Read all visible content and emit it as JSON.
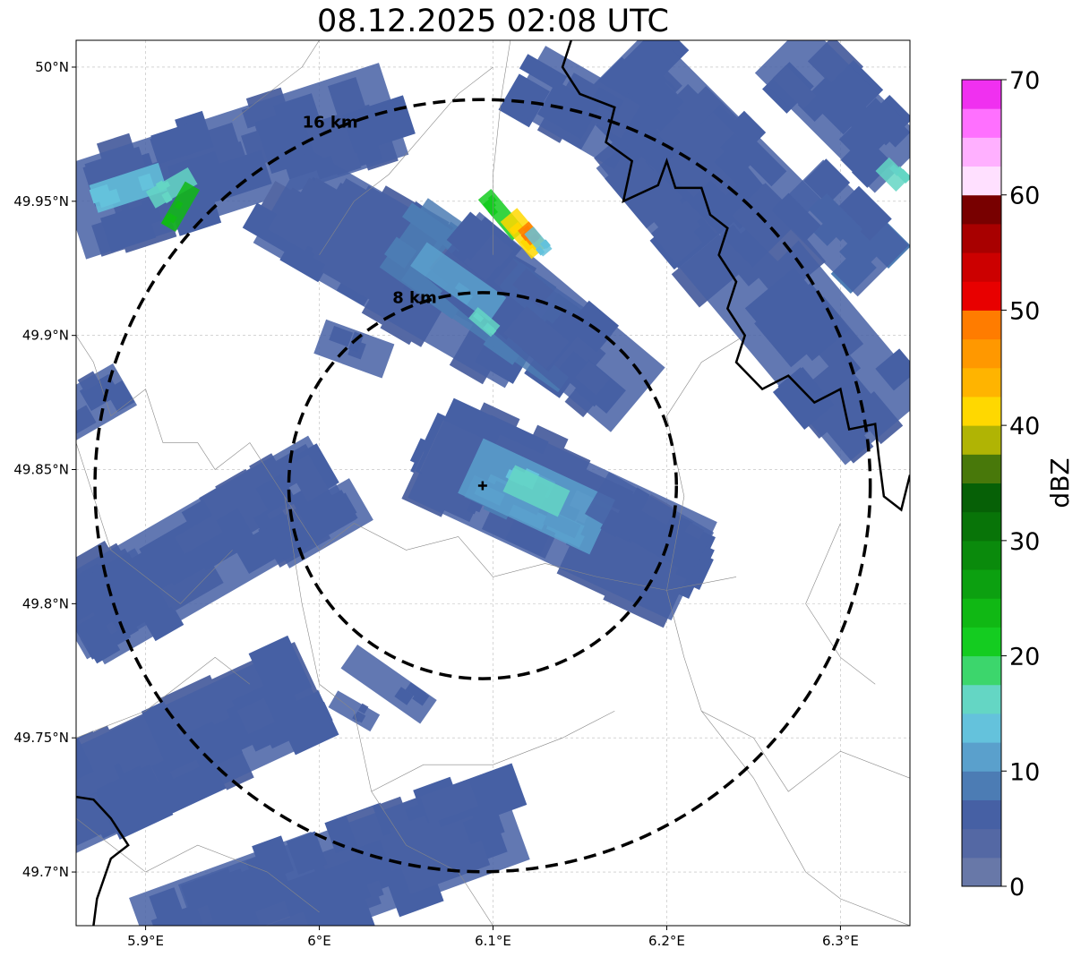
{
  "title": "08.12.2025 02:08 UTC",
  "map": {
    "extent": {
      "lon": [
        5.86,
        6.34
      ],
      "lat": [
        49.68,
        50.01
      ]
    },
    "lon_ticks": [
      {
        "value": 5.9,
        "label": "5.9°E"
      },
      {
        "value": 6.0,
        "label": "6°E"
      },
      {
        "value": 6.1,
        "label": "6.1°E"
      },
      {
        "value": 6.2,
        "label": "6.2°E"
      },
      {
        "value": 6.3,
        "label": "6.3°E"
      }
    ],
    "lat_ticks": [
      {
        "value": 50.0,
        "label": "50°N"
      },
      {
        "value": 49.95,
        "label": "49.95°N"
      },
      {
        "value": 49.9,
        "label": "49.9°N"
      },
      {
        "value": 49.85,
        "label": "49.85°N"
      },
      {
        "value": 49.8,
        "label": "49.8°N"
      },
      {
        "value": 49.75,
        "label": "49.75°N"
      },
      {
        "value": 49.7,
        "label": "49.7°N"
      }
    ],
    "radar_site": {
      "lon": 6.094,
      "lat": 49.844
    },
    "range_rings": [
      {
        "label": "8 km",
        "radius_km": 8
      },
      {
        "label": "16 km",
        "radius_km": 16
      }
    ],
    "gridlines": true
  },
  "colorbar": {
    "label": "dBZ",
    "min": 0,
    "max": 70,
    "ticks": [
      {
        "value": 0,
        "label": "0"
      },
      {
        "value": 10,
        "label": "10"
      },
      {
        "value": 20,
        "label": "20"
      },
      {
        "value": 30,
        "label": "30"
      },
      {
        "value": 40,
        "label": "40"
      },
      {
        "value": 50,
        "label": "50"
      },
      {
        "value": 60,
        "label": "60"
      },
      {
        "value": 70,
        "label": "70"
      }
    ],
    "colors": [
      "#6878a8",
      "#5468a4",
      "#4660a4",
      "#4c7cb4",
      "#5aa0cc",
      "#64c2dc",
      "#64d6c4",
      "#3cd66c",
      "#14cc20",
      "#10b814",
      "#0ca010",
      "#0a8a0c",
      "#087408",
      "#066006",
      "#48780a",
      "#b0b404",
      "#ffd800",
      "#ffb400",
      "#ff9800",
      "#ff7c00",
      "#e80000",
      "#cc0000",
      "#a80000",
      "#780000",
      "#ffe0ff",
      "#ffb0ff",
      "#ff70ff",
      "#f030f0"
    ]
  },
  "echo_regions": [
    {
      "lon": 5.95,
      "lat": 49.965,
      "len_km": 14,
      "wid_km": 4,
      "angle": -18,
      "dbz": 5
    },
    {
      "lon": 5.89,
      "lat": 49.955,
      "len_km": 3,
      "wid_km": 1.2,
      "angle": -18,
      "dbz": 14
    },
    {
      "lon": 5.915,
      "lat": 49.955,
      "len_km": 2,
      "wid_km": 0.8,
      "angle": -30,
      "dbz": 16
    },
    {
      "lon": 5.92,
      "lat": 49.948,
      "len_km": 2,
      "wid_km": 0.7,
      "angle": -60,
      "dbz": 24
    },
    {
      "lon": 6.05,
      "lat": 49.925,
      "len_km": 12,
      "wid_km": 4.5,
      "angle": 30,
      "dbz": 5
    },
    {
      "lon": 6.1,
      "lat": 49.915,
      "len_km": 9,
      "wid_km": 3.5,
      "angle": 35,
      "dbz": 8
    },
    {
      "lon": 6.13,
      "lat": 49.905,
      "len_km": 10,
      "wid_km": 3.5,
      "angle": 40,
      "dbz": 5
    },
    {
      "lon": 6.08,
      "lat": 49.92,
      "len_km": 4,
      "wid_km": 1.2,
      "angle": 35,
      "dbz": 11
    },
    {
      "lon": 6.095,
      "lat": 49.905,
      "len_km": 1.2,
      "wid_km": 0.6,
      "angle": 40,
      "dbz": 15
    },
    {
      "lon": 6.105,
      "lat": 49.945,
      "len_km": 2.2,
      "wid_km": 0.7,
      "angle": 50,
      "dbz": 22
    },
    {
      "lon": 6.118,
      "lat": 49.938,
      "len_km": 2,
      "wid_km": 0.9,
      "angle": 50,
      "dbz": 42
    },
    {
      "lon": 6.121,
      "lat": 49.938,
      "len_km": 0.8,
      "wid_km": 0.6,
      "angle": 50,
      "dbz": 48
    },
    {
      "lon": 6.126,
      "lat": 49.935,
      "len_km": 1.2,
      "wid_km": 0.5,
      "angle": 50,
      "dbz": 14
    },
    {
      "lon": 6.02,
      "lat": 49.895,
      "len_km": 3,
      "wid_km": 1.5,
      "angle": 20,
      "dbz": 5
    },
    {
      "lon": 6.14,
      "lat": 49.835,
      "len_km": 12,
      "wid_km": 4.5,
      "angle": 25,
      "dbz": 5
    },
    {
      "lon": 6.125,
      "lat": 49.84,
      "len_km": 6,
      "wid_km": 2.5,
      "angle": 25,
      "dbz": 10
    },
    {
      "lon": 6.125,
      "lat": 49.842,
      "len_km": 2.5,
      "wid_km": 1.2,
      "angle": 25,
      "dbz": 15
    },
    {
      "lon": 6.19,
      "lat": 49.83,
      "len_km": 5,
      "wid_km": 2,
      "angle": 30,
      "dbz": 6
    },
    {
      "lon": 6.255,
      "lat": 49.92,
      "len_km": 16,
      "wid_km": 4.5,
      "angle": 50,
      "dbz": 5
    },
    {
      "lon": 6.22,
      "lat": 49.97,
      "len_km": 10,
      "wid_km": 4,
      "angle": 45,
      "dbz": 5
    },
    {
      "lon": 6.3,
      "lat": 49.985,
      "len_km": 7,
      "wid_km": 3,
      "angle": 45,
      "dbz": 6
    },
    {
      "lon": 6.33,
      "lat": 49.96,
      "len_km": 1.2,
      "wid_km": 0.8,
      "angle": 45,
      "dbz": 16
    },
    {
      "lon": 6.3,
      "lat": 49.94,
      "len_km": 5,
      "wid_km": 3,
      "angle": 45,
      "dbz": 7
    },
    {
      "lon": 6.15,
      "lat": 49.985,
      "len_km": 5,
      "wid_km": 3,
      "angle": 30,
      "dbz": 5
    },
    {
      "lon": 5.935,
      "lat": 49.82,
      "len_km": 12,
      "wid_km": 4,
      "angle": -30,
      "dbz": 5
    },
    {
      "lon": 5.88,
      "lat": 49.8,
      "len_km": 4,
      "wid_km": 3,
      "angle": -30,
      "dbz": 6
    },
    {
      "lon": 6.0,
      "lat": 49.83,
      "len_km": 4,
      "wid_km": 2,
      "angle": -30,
      "dbz": 5
    },
    {
      "lon": 5.87,
      "lat": 49.875,
      "len_km": 3,
      "wid_km": 2,
      "angle": -30,
      "dbz": 5
    },
    {
      "lon": 5.92,
      "lat": 49.745,
      "len_km": 12,
      "wid_km": 4,
      "angle": -25,
      "dbz": 5
    },
    {
      "lon": 6.02,
      "lat": 49.7,
      "len_km": 14,
      "wid_km": 4,
      "angle": -20,
      "dbz": 5
    },
    {
      "lon": 5.95,
      "lat": 49.69,
      "len_km": 8,
      "wid_km": 3,
      "angle": -20,
      "dbz": 6
    },
    {
      "lon": 6.04,
      "lat": 49.77,
      "len_km": 4,
      "wid_km": 1.2,
      "angle": 35,
      "dbz": 5
    },
    {
      "lon": 6.02,
      "lat": 49.76,
      "len_km": 2,
      "wid_km": 0.8,
      "angle": 30,
      "dbz": 5
    }
  ],
  "borders": [
    {
      "lon": 6.145,
      "lat": 50.01
    },
    {
      "lon": 6.14,
      "lat": 50.0
    },
    {
      "lon": 6.15,
      "lat": 49.99
    },
    {
      "lon": 6.17,
      "lat": 49.985
    },
    {
      "lon": 6.165,
      "lat": 49.972
    },
    {
      "lon": 6.18,
      "lat": 49.965
    },
    {
      "lon": 6.175,
      "lat": 49.95
    },
    {
      "lon": 6.195,
      "lat": 49.956
    },
    {
      "lon": 6.2,
      "lat": 49.965
    },
    {
      "lon": 6.205,
      "lat": 49.955
    },
    {
      "lon": 6.22,
      "lat": 49.955
    },
    {
      "lon": 6.225,
      "lat": 49.945
    },
    {
      "lon": 6.235,
      "lat": 49.94
    },
    {
      "lon": 6.23,
      "lat": 49.93
    },
    {
      "lon": 6.24,
      "lat": 49.92
    },
    {
      "lon": 6.235,
      "lat": 49.91
    },
    {
      "lon": 6.245,
      "lat": 49.9
    },
    {
      "lon": 6.24,
      "lat": 49.89
    },
    {
      "lon": 6.255,
      "lat": 49.88
    },
    {
      "lon": 6.27,
      "lat": 49.885
    },
    {
      "lon": 6.285,
      "lat": 49.875
    },
    {
      "lon": 6.3,
      "lat": 49.88
    },
    {
      "lon": 6.305,
      "lat": 49.865
    },
    {
      "lon": 6.32,
      "lat": 49.867
    },
    {
      "lon": 6.322,
      "lat": 49.855
    },
    {
      "lon": 6.325,
      "lat": 49.84
    },
    {
      "lon": 6.335,
      "lat": 49.835
    },
    {
      "lon": 6.34,
      "lat": 49.848
    }
  ]
}
